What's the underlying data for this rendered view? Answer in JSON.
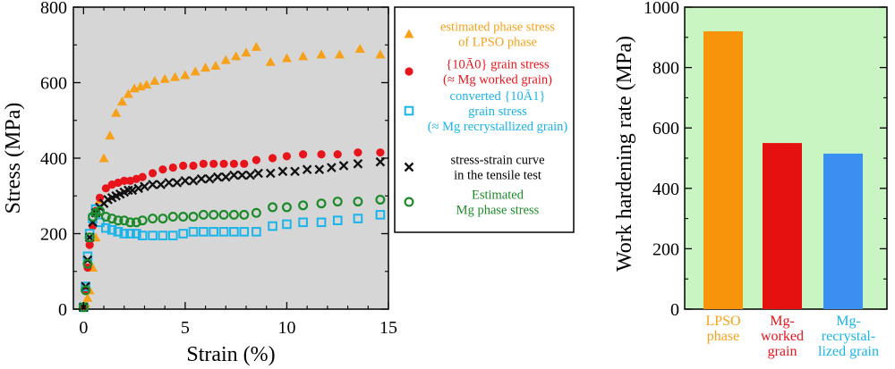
{
  "colors": {
    "lpso": "#f7a11a",
    "worked": "#e8141b",
    "recryst": "#19b4ea",
    "tensile": "#111111",
    "mgphase": "#1d8a2a",
    "left_bg": "#d6d6d6",
    "right_bg": "#c9f5c2",
    "bar_lpso": "#f7940a",
    "bar_worked": "#e51010",
    "bar_recryst": "#3a8ff0"
  },
  "chart_data": [
    {
      "type": "scatter",
      "xlabel": "Strain (%)",
      "ylabel": "Stress (MPa)",
      "xlim": [
        -0.5,
        15
      ],
      "ylim": [
        0,
        800
      ],
      "xticks": [
        0,
        5,
        10,
        15
      ],
      "yticks": [
        0,
        200,
        400,
        600,
        800
      ],
      "grid": false,
      "legend_position": "right-outside",
      "series": [
        {
          "key": "lpso",
          "marker": "triangle",
          "legend": [
            "estimated phase stress",
            "of LPSO phase"
          ],
          "x": [
            0.0,
            0.1,
            0.2,
            0.3,
            0.45,
            0.6,
            0.8,
            1.0,
            1.3,
            1.6,
            1.9,
            2.2,
            2.5,
            2.8,
            3.1,
            3.5,
            4.0,
            4.5,
            5.0,
            5.5,
            6.0,
            6.5,
            7.0,
            7.5,
            8.0,
            8.5,
            9.2,
            10.0,
            10.8,
            11.7,
            12.6,
            13.6,
            14.6
          ],
          "y": [
            5,
            15,
            30,
            50,
            110,
            190,
            290,
            400,
            460,
            520,
            550,
            570,
            585,
            590,
            595,
            605,
            610,
            615,
            620,
            630,
            640,
            645,
            660,
            670,
            680,
            695,
            655,
            665,
            670,
            675,
            675,
            690,
            675
          ]
        },
        {
          "key": "worked",
          "marker": "filled-circle",
          "legend": [
            "{10Ā0} grain stress",
            "(≈ Mg worked grain)"
          ],
          "x": [
            0.0,
            0.1,
            0.2,
            0.3,
            0.45,
            0.6,
            0.8,
            1.1,
            1.4,
            1.7,
            2.0,
            2.3,
            2.6,
            2.9,
            3.4,
            3.9,
            4.4,
            4.9,
            5.4,
            5.9,
            6.4,
            6.9,
            7.4,
            7.9,
            8.5,
            9.3,
            10.0,
            10.8,
            11.7,
            12.5,
            13.5,
            14.6
          ],
          "y": [
            5,
            50,
            110,
            170,
            220,
            260,
            295,
            320,
            330,
            335,
            340,
            340,
            345,
            350,
            360,
            370,
            375,
            380,
            380,
            385,
            385,
            385,
            385,
            385,
            395,
            400,
            405,
            410,
            410,
            410,
            415,
            415
          ]
        },
        {
          "key": "recryst",
          "marker": "open-square",
          "legend": [
            "converted {10Ā1}",
            "grain stress",
            "(≈ Mg recrystallized grain)"
          ],
          "x": [
            0.0,
            0.1,
            0.2,
            0.3,
            0.45,
            0.6,
            0.8,
            1.1,
            1.4,
            1.7,
            2.0,
            2.3,
            2.6,
            2.9,
            3.4,
            3.9,
            4.4,
            4.9,
            5.4,
            5.9,
            6.4,
            6.9,
            7.4,
            7.9,
            8.5,
            9.3,
            10.0,
            10.8,
            11.7,
            12.5,
            13.5,
            14.6
          ],
          "y": [
            5,
            60,
            140,
            200,
            240,
            265,
            230,
            215,
            210,
            205,
            200,
            200,
            200,
            195,
            195,
            195,
            195,
            200,
            205,
            205,
            205,
            205,
            205,
            205,
            205,
            220,
            225,
            230,
            230,
            235,
            240,
            250
          ]
        },
        {
          "key": "tensile",
          "marker": "cross",
          "legend": [
            "stress-strain curve",
            "in the tensile test"
          ],
          "x": [
            0.0,
            0.1,
            0.2,
            0.3,
            0.45,
            0.6,
            0.8,
            1.0,
            1.2,
            1.4,
            1.6,
            1.8,
            2.0,
            2.2,
            2.4,
            2.7,
            3.0,
            3.4,
            3.8,
            4.2,
            4.6,
            5.0,
            5.4,
            5.8,
            6.2,
            6.6,
            7.0,
            7.4,
            7.8,
            8.2,
            8.6,
            9.2,
            9.8,
            10.4,
            11.0,
            11.6,
            12.2,
            12.8,
            13.5,
            14.6
          ],
          "y": [
            5,
            60,
            130,
            190,
            230,
            255,
            270,
            280,
            290,
            295,
            300,
            305,
            310,
            315,
            315,
            320,
            325,
            330,
            330,
            335,
            335,
            340,
            340,
            345,
            345,
            350,
            350,
            355,
            355,
            355,
            360,
            360,
            365,
            365,
            370,
            370,
            375,
            380,
            385,
            390
          ]
        },
        {
          "key": "mgphase",
          "marker": "open-circle",
          "legend": [
            "Estimated",
            "Mg phase stress"
          ],
          "x": [
            0.0,
            0.1,
            0.2,
            0.3,
            0.45,
            0.6,
            0.8,
            1.1,
            1.4,
            1.7,
            2.0,
            2.3,
            2.6,
            2.9,
            3.4,
            3.9,
            4.4,
            4.9,
            5.4,
            5.9,
            6.4,
            6.9,
            7.4,
            7.9,
            8.5,
            9.3,
            10.0,
            10.8,
            11.7,
            12.5,
            13.5,
            14.6
          ],
          "y": [
            5,
            50,
            120,
            190,
            245,
            255,
            260,
            245,
            240,
            235,
            235,
            230,
            230,
            235,
            240,
            240,
            245,
            245,
            245,
            250,
            250,
            250,
            250,
            250,
            255,
            270,
            270,
            275,
            280,
            285,
            285,
            290
          ]
        }
      ]
    },
    {
      "type": "bar",
      "ylabel": "Work hardening rate (MPa)",
      "ylim": [
        0,
        1000
      ],
      "yticks": [
        0,
        200,
        400,
        600,
        800,
        1000
      ],
      "categories": [
        {
          "lines": [
            "LPSO",
            "phase"
          ],
          "key": "bar_lpso"
        },
        {
          "lines": [
            "Mg-",
            "worked",
            "grain"
          ],
          "key": "bar_worked"
        },
        {
          "lines": [
            "Mg-",
            "recrystal-",
            "lized grain"
          ],
          "key": "bar_recryst"
        }
      ],
      "values": [
        920,
        550,
        515
      ],
      "grid": false
    }
  ]
}
